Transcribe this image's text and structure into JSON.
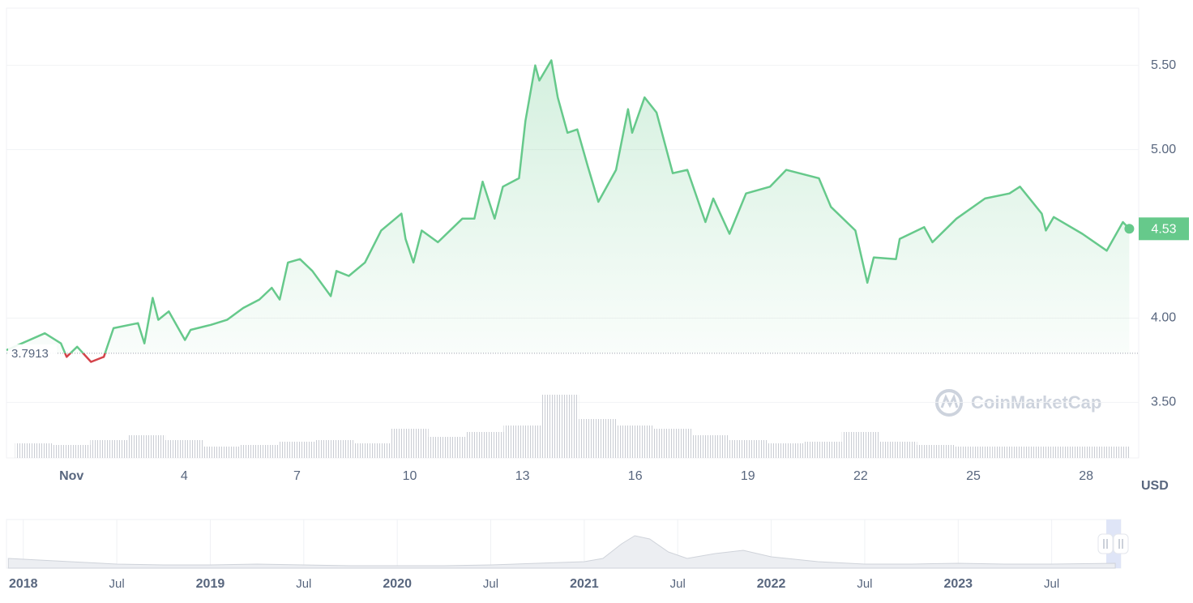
{
  "chart_data": [
    {
      "type": "line",
      "x": [
        -0.73,
        0.29,
        0.72,
        0.87,
        1.15,
        1.52,
        1.86,
        2.12,
        2.77,
        2.94,
        3.16,
        3.31,
        3.59,
        4.02,
        4.17,
        4.71,
        5.14,
        5.57,
        6.0,
        6.33,
        6.54,
        6.76,
        7.08,
        7.41,
        7.9,
        8.05,
        8.38,
        8.81,
        9.24,
        9.78,
        9.89,
        10.1,
        10.32,
        10.75,
        11.4,
        11.72,
        11.94,
        12.26,
        12.48,
        12.91,
        13.08,
        13.34,
        13.45,
        13.77,
        13.94,
        14.2,
        14.46,
        14.74,
        15.02,
        15.49,
        15.81,
        15.92,
        16.25,
        16.57,
        17.0,
        17.39,
        17.87,
        18.08,
        18.51,
        18.95,
        19.59,
        20.02,
        20.89,
        21.21,
        21.86,
        22.18,
        22.35,
        22.94,
        23.04,
        23.69,
        23.91,
        24.55,
        25.31,
        25.96,
        26.24,
        26.82,
        26.93,
        27.14,
        27.9,
        28.55,
        28.98,
        29.15
      ],
      "values": [
        3.81,
        3.91,
        3.85,
        3.77,
        3.83,
        3.74,
        3.77,
        3.94,
        3.97,
        3.85,
        4.12,
        3.99,
        4.04,
        3.87,
        3.93,
        3.96,
        3.99,
        4.06,
        4.11,
        4.18,
        4.11,
        4.33,
        4.35,
        4.28,
        4.13,
        4.28,
        4.25,
        4.33,
        4.52,
        4.62,
        4.47,
        4.33,
        4.52,
        4.45,
        4.59,
        4.59,
        4.81,
        4.59,
        4.78,
        4.83,
        5.17,
        5.5,
        5.41,
        5.53,
        5.31,
        5.1,
        5.12,
        4.9,
        4.69,
        4.88,
        5.24,
        5.1,
        5.31,
        5.22,
        4.86,
        4.88,
        4.57,
        4.71,
        4.5,
        4.74,
        4.78,
        4.88,
        4.83,
        4.66,
        4.52,
        4.21,
        4.36,
        4.35,
        4.47,
        4.54,
        4.45,
        4.59,
        4.71,
        4.74,
        4.78,
        4.62,
        4.52,
        4.6,
        4.5,
        4.4,
        4.57,
        4.53
      ],
      "color": "#66c98b",
      "down_color": "#d4434a",
      "baseline": 3.7913,
      "last_value": 4.53,
      "xlim": [
        -0.73,
        29.4
      ],
      "ylim": [
        3.17,
        5.84
      ],
      "xticks": [
        {
          "value": 1,
          "label": "Nov"
        },
        4,
        7,
        10,
        13,
        16,
        19,
        22,
        25,
        28
      ],
      "yticks": [
        {
          "value": 3.5,
          "label": "3.50"
        },
        {
          "value": 4.0,
          "label": "4.00"
        },
        {
          "value": 5.0,
          "label": "5.00"
        },
        {
          "value": 5.5,
          "label": "5.50"
        }
      ],
      "grid": true,
      "y_unit": "USD",
      "watermark": "CoinMarketCap",
      "volume": {
        "x": [
          0,
          1,
          2,
          3,
          4,
          5,
          6,
          7,
          8,
          9,
          10,
          11,
          12,
          13,
          14,
          15,
          16,
          17,
          18,
          19,
          20,
          21,
          22,
          23,
          24,
          25,
          26,
          27,
          28,
          29
        ],
        "values": [
          18,
          16,
          22,
          28,
          22,
          14,
          16,
          20,
          22,
          18,
          36,
          26,
          32,
          40,
          78,
          48,
          40,
          36,
          28,
          22,
          18,
          20,
          32,
          20,
          16,
          14,
          14,
          14,
          14,
          14
        ],
        "ylim": [
          0,
          100
        ],
        "color": "#c9ccd3"
      }
    },
    {
      "type": "area",
      "x": [
        2017.92,
        2018.25,
        2018.5,
        2018.75,
        2019.0,
        2019.25,
        2019.5,
        2019.75,
        2020.0,
        2020.25,
        2020.5,
        2020.75,
        2021.0,
        2021.1,
        2021.2,
        2021.27,
        2021.35,
        2021.45,
        2021.55,
        2021.7,
        2021.85,
        2022.0,
        2022.25,
        2022.5,
        2022.75,
        2023.0,
        2023.25,
        2023.5,
        2023.84
      ],
      "values": [
        12,
        8,
        5,
        4,
        4,
        5,
        4,
        3,
        3,
        3,
        4,
        6,
        8,
        12,
        30,
        40,
        36,
        20,
        12,
        18,
        22,
        14,
        8,
        5,
        5,
        6,
        5,
        5,
        6
      ],
      "xlim": [
        2017.91,
        2023.87
      ],
      "ylim": [
        0,
        60
      ],
      "xticks": [
        2018,
        {
          "value": 2018.5,
          "label": "Jul"
        },
        2019,
        {
          "value": 2019.5,
          "label": "Jul"
        },
        2020,
        {
          "value": 2020.5,
          "label": "Jul"
        },
        2021,
        {
          "value": 2021.5,
          "label": "Jul"
        },
        2022,
        {
          "value": 2022.5,
          "label": "Jul"
        },
        2023,
        {
          "value": 2023.5,
          "label": "Jul"
        }
      ],
      "color": "#cfd3da"
    }
  ]
}
